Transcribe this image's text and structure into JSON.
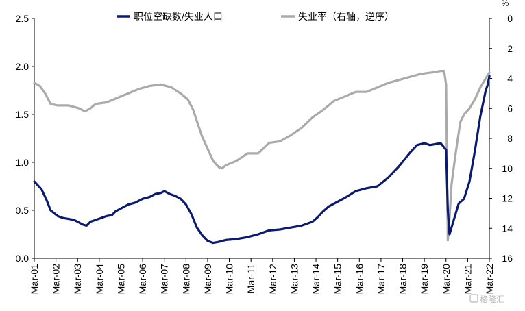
{
  "chart_data": {
    "type": "line",
    "unit_right": "%",
    "legend_position": "top",
    "grid": false,
    "x_labels": [
      "Mar-01",
      "Mar-02",
      "Mar-03",
      "Mar-04",
      "Mar-05",
      "Mar-06",
      "Mar-07",
      "Mar-08",
      "Mar-09",
      "Mar-10",
      "Mar-11",
      "Mar-12",
      "Mar-13",
      "Mar-14",
      "Mar-15",
      "Mar-16",
      "Mar-17",
      "Mar-18",
      "Mar-19",
      "Mar-20",
      "Mar-21",
      "Mar-22"
    ],
    "y_left": {
      "min": 0,
      "max": 2.5,
      "ticks": [
        "0.0",
        "0.5",
        "1.0",
        "1.5",
        "2.0",
        "2.5"
      ]
    },
    "y_right": {
      "min": 0,
      "max": 16,
      "reversed": true,
      "ticks": [
        "0",
        "2",
        "4",
        "6",
        "8",
        "10",
        "12",
        "14",
        "16"
      ]
    },
    "series": [
      {
        "name": "职位空缺数/失业人口",
        "axis": "left",
        "color": "#0b1a6e",
        "points": [
          [
            2001.17,
            0.8
          ],
          [
            2001.5,
            0.72
          ],
          [
            2001.75,
            0.6
          ],
          [
            2001.92,
            0.5
          ],
          [
            2002.25,
            0.44
          ],
          [
            2002.5,
            0.42
          ],
          [
            2002.75,
            0.41
          ],
          [
            2003.0,
            0.4
          ],
          [
            2003.17,
            0.38
          ],
          [
            2003.42,
            0.35
          ],
          [
            2003.58,
            0.34
          ],
          [
            2003.75,
            0.38
          ],
          [
            2004.0,
            0.4
          ],
          [
            2004.25,
            0.42
          ],
          [
            2004.5,
            0.44
          ],
          [
            2004.75,
            0.45
          ],
          [
            2004.92,
            0.49
          ],
          [
            2005.17,
            0.52
          ],
          [
            2005.5,
            0.56
          ],
          [
            2005.83,
            0.58
          ],
          [
            2006.17,
            0.62
          ],
          [
            2006.5,
            0.64
          ],
          [
            2006.75,
            0.67
          ],
          [
            2007.0,
            0.68
          ],
          [
            2007.17,
            0.7
          ],
          [
            2007.42,
            0.67
          ],
          [
            2007.67,
            0.65
          ],
          [
            2007.92,
            0.62
          ],
          [
            2008.17,
            0.56
          ],
          [
            2008.42,
            0.46
          ],
          [
            2008.67,
            0.32
          ],
          [
            2008.92,
            0.24
          ],
          [
            2009.17,
            0.18
          ],
          [
            2009.42,
            0.16
          ],
          [
            2009.67,
            0.17
          ],
          [
            2010.0,
            0.19
          ],
          [
            2010.5,
            0.2
          ],
          [
            2011.0,
            0.22
          ],
          [
            2011.5,
            0.25
          ],
          [
            2012.0,
            0.29
          ],
          [
            2012.5,
            0.3
          ],
          [
            2013.0,
            0.32
          ],
          [
            2013.5,
            0.34
          ],
          [
            2014.0,
            0.38
          ],
          [
            2014.25,
            0.43
          ],
          [
            2014.5,
            0.49
          ],
          [
            2014.75,
            0.54
          ],
          [
            2015.0,
            0.57
          ],
          [
            2015.5,
            0.63
          ],
          [
            2016.0,
            0.7
          ],
          [
            2016.5,
            0.73
          ],
          [
            2017.0,
            0.75
          ],
          [
            2017.5,
            0.84
          ],
          [
            2018.0,
            0.96
          ],
          [
            2018.5,
            1.1
          ],
          [
            2018.83,
            1.18
          ],
          [
            2019.17,
            1.2
          ],
          [
            2019.42,
            1.18
          ],
          [
            2019.67,
            1.19
          ],
          [
            2019.92,
            1.2
          ],
          [
            2020.17,
            1.13
          ],
          [
            2020.25,
            0.5
          ],
          [
            2020.33,
            0.25
          ],
          [
            2020.5,
            0.38
          ],
          [
            2020.75,
            0.57
          ],
          [
            2021.0,
            0.62
          ],
          [
            2021.25,
            0.8
          ],
          [
            2021.5,
            1.12
          ],
          [
            2021.75,
            1.48
          ],
          [
            2022.0,
            1.75
          ],
          [
            2022.08,
            1.8
          ],
          [
            2022.17,
            1.9
          ]
        ]
      },
      {
        "name": "失业率（右轴，逆序）",
        "axis": "right",
        "color": "#aaaaaa",
        "points": [
          [
            2001.17,
            4.3
          ],
          [
            2001.42,
            4.5
          ],
          [
            2001.67,
            5.0
          ],
          [
            2001.92,
            5.7
          ],
          [
            2002.25,
            5.8
          ],
          [
            2002.5,
            5.8
          ],
          [
            2002.75,
            5.8
          ],
          [
            2003.0,
            5.9
          ],
          [
            2003.25,
            6.0
          ],
          [
            2003.5,
            6.2
          ],
          [
            2003.75,
            6.0
          ],
          [
            2004.0,
            5.7
          ],
          [
            2004.5,
            5.6
          ],
          [
            2005.0,
            5.3
          ],
          [
            2005.5,
            5.0
          ],
          [
            2006.0,
            4.7
          ],
          [
            2006.5,
            4.5
          ],
          [
            2007.0,
            4.4
          ],
          [
            2007.5,
            4.6
          ],
          [
            2007.92,
            5.0
          ],
          [
            2008.25,
            5.4
          ],
          [
            2008.5,
            6.1
          ],
          [
            2008.75,
            7.2
          ],
          [
            2008.92,
            7.9
          ],
          [
            2009.17,
            8.7
          ],
          [
            2009.42,
            9.5
          ],
          [
            2009.67,
            9.9
          ],
          [
            2009.83,
            10.0
          ],
          [
            2010.0,
            9.8
          ],
          [
            2010.5,
            9.5
          ],
          [
            2011.0,
            9.0
          ],
          [
            2011.5,
            9.0
          ],
          [
            2012.0,
            8.3
          ],
          [
            2012.5,
            8.2
          ],
          [
            2013.0,
            7.8
          ],
          [
            2013.5,
            7.3
          ],
          [
            2014.0,
            6.6
          ],
          [
            2014.5,
            6.1
          ],
          [
            2015.0,
            5.5
          ],
          [
            2015.5,
            5.2
          ],
          [
            2016.0,
            4.9
          ],
          [
            2016.5,
            4.9
          ],
          [
            2017.0,
            4.6
          ],
          [
            2017.5,
            4.3
          ],
          [
            2018.0,
            4.1
          ],
          [
            2018.5,
            3.9
          ],
          [
            2019.0,
            3.7
          ],
          [
            2019.5,
            3.6
          ],
          [
            2019.92,
            3.5
          ],
          [
            2020.08,
            3.5
          ],
          [
            2020.17,
            4.4
          ],
          [
            2020.25,
            14.8
          ],
          [
            2020.33,
            13.3
          ],
          [
            2020.42,
            11.1
          ],
          [
            2020.5,
            10.2
          ],
          [
            2020.67,
            8.4
          ],
          [
            2020.83,
            6.9
          ],
          [
            2021.0,
            6.4
          ],
          [
            2021.25,
            6.0
          ],
          [
            2021.5,
            5.4
          ],
          [
            2021.75,
            4.6
          ],
          [
            2022.0,
            4.0
          ],
          [
            2022.17,
            3.6
          ]
        ]
      }
    ]
  },
  "watermark": "格隆汇"
}
